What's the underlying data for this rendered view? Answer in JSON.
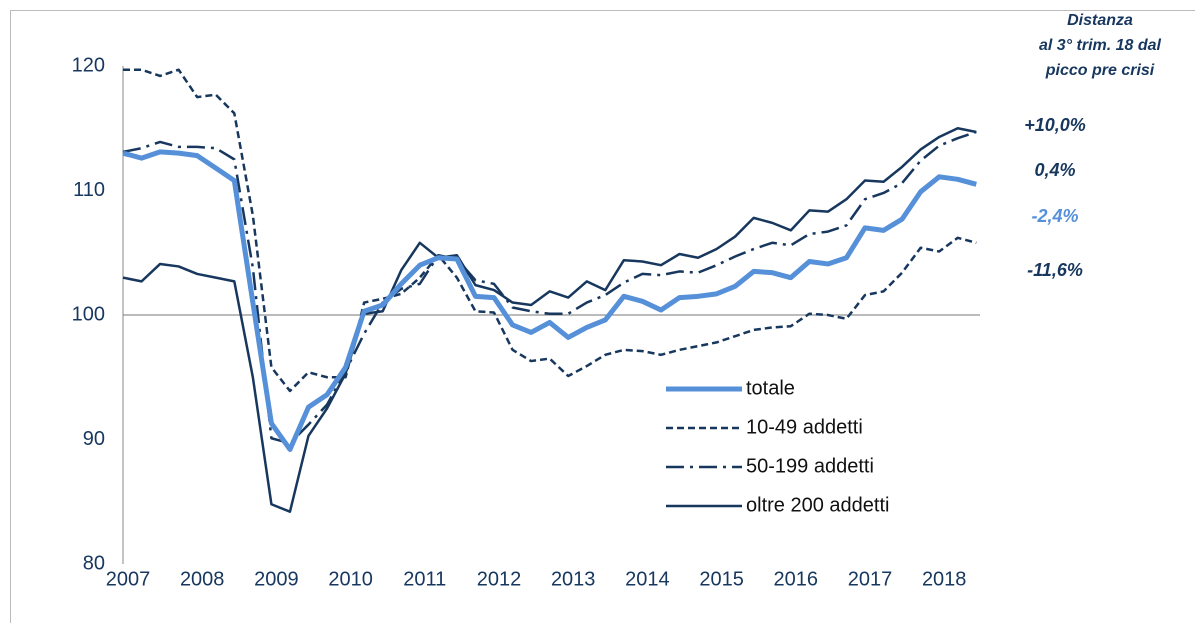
{
  "chart_data": {
    "type": "line",
    "categories": [
      "2007",
      null,
      null,
      null,
      "2008",
      null,
      null,
      null,
      "2009",
      null,
      null,
      null,
      "2010",
      null,
      null,
      null,
      "2011",
      null,
      null,
      null,
      "2012",
      null,
      null,
      null,
      "2013",
      null,
      null,
      null,
      "2014",
      null,
      null,
      null,
      "2015",
      null,
      null,
      null,
      "2016",
      null,
      null,
      null,
      "2017",
      null,
      null,
      null,
      "2018",
      null,
      null
    ],
    "ylim": [
      80,
      120
    ],
    "yticks": [
      80,
      90,
      100,
      110,
      120
    ],
    "reference_line": 100,
    "series": [
      {
        "name": "totale",
        "color": "#5590d8",
        "width": 5,
        "dash": "solid",
        "values": [
          113,
          112.6,
          113.1,
          113,
          112.8,
          111.8,
          110.8,
          101,
          91.3,
          89.2,
          92.6,
          93.6,
          95.8,
          100.3,
          100.8,
          102.5,
          104,
          104.6,
          104.5,
          101.5,
          101.4,
          99.2,
          98.6,
          99.4,
          98.2,
          99,
          99.6,
          101.5,
          101.1,
          100.4,
          101.4,
          101.5,
          101.7,
          102.3,
          103.5,
          103.4,
          103,
          104.3,
          104.1,
          104.6,
          107,
          106.8,
          107.7,
          109.9,
          111.1,
          110.9,
          110.5
        ]
      },
      {
        "name": "10-49 addetti",
        "color": "#17375e",
        "width": 2.5,
        "dash": "dashed",
        "values": [
          119.7,
          119.7,
          119.2,
          119.7,
          117.5,
          117.7,
          116.2,
          108,
          95.8,
          93.9,
          95.4,
          95,
          95,
          101,
          101.3,
          101.7,
          103,
          104.8,
          103,
          100.3,
          100.2,
          97.2,
          96.3,
          96.5,
          95.1,
          95.9,
          96.8,
          97.2,
          97.1,
          96.8,
          97.2,
          97.5,
          97.8,
          98.3,
          98.8,
          99,
          99.1,
          100.1,
          100,
          99.7,
          101.6,
          101.9,
          103.4,
          105.4,
          105.1,
          106.2,
          105.8
        ]
      },
      {
        "name": "50-199 addetti",
        "color": "#17375e",
        "width": 2.5,
        "dash": "dashdot",
        "values": [
          113.1,
          113.4,
          113.9,
          113.5,
          113.5,
          113.4,
          112.5,
          103.8,
          90.1,
          89.7,
          91.2,
          92.8,
          95.5,
          98.5,
          101,
          102.1,
          102.5,
          104.8,
          104.5,
          102.8,
          102.5,
          100.6,
          100.3,
          100.1,
          100.1,
          101,
          101.6,
          102.6,
          103.3,
          103.2,
          103.5,
          103.4,
          104,
          104.7,
          105.3,
          105.8,
          105.6,
          106.5,
          106.7,
          107.2,
          109.3,
          109.8,
          110.6,
          112.4,
          113.6,
          114.2,
          114.7
        ]
      },
      {
        "name": "oltre 200 addetti",
        "color": "#17375e",
        "width": 2.5,
        "dash": "solid",
        "values": [
          103,
          102.7,
          104.1,
          103.9,
          103.3,
          103,
          102.7,
          95,
          84.8,
          84.2,
          90.3,
          92.5,
          95.3,
          100.1,
          100.3,
          103.6,
          105.8,
          104.6,
          104.8,
          102.4,
          102,
          101,
          100.8,
          101.9,
          101.4,
          102.7,
          102,
          104.4,
          104.3,
          104,
          104.9,
          104.6,
          105.3,
          106.3,
          107.8,
          107.4,
          106.8,
          108.4,
          108.3,
          109.3,
          110.8,
          110.7,
          111.9,
          113.3,
          114.3,
          115,
          114.7
        ]
      }
    ],
    "annotation_title": [
      "Distanza",
      "al 3° trim. 18 dal",
      "picco pre crisi"
    ],
    "annotations": [
      {
        "text": "+10,0%",
        "color": "#17375e"
      },
      {
        "text": "0,4%",
        "color": "#17375e"
      },
      {
        "text": "-2,4%",
        "color": "#5590d8"
      },
      {
        "text": "-11,6%",
        "color": "#17375e"
      }
    ]
  }
}
